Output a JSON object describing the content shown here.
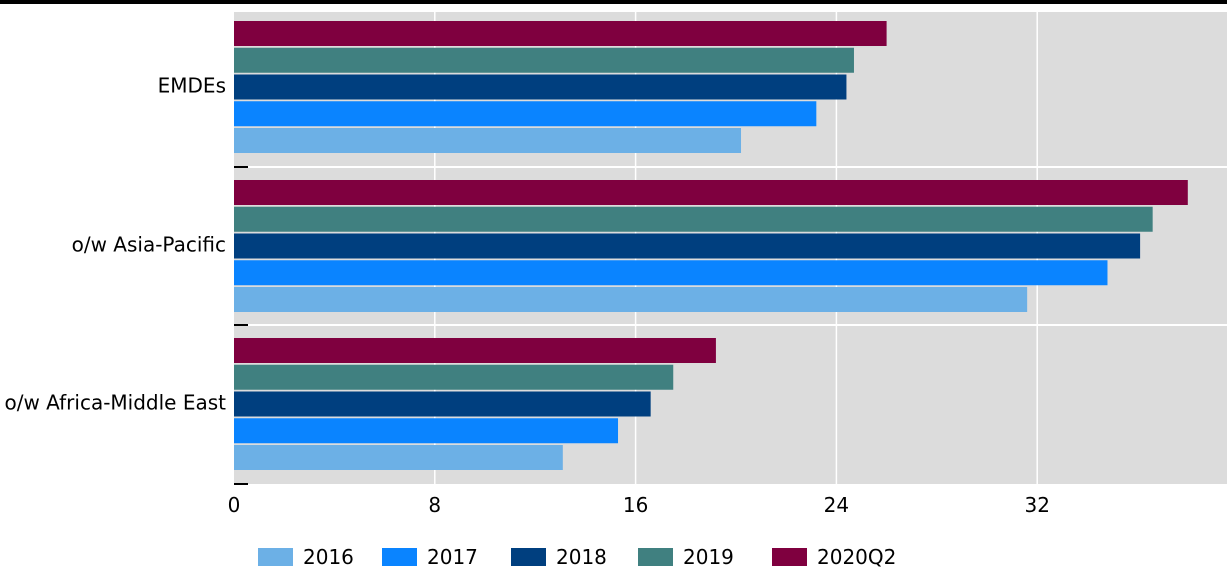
{
  "chart_data": {
    "type": "bar",
    "orientation": "horizontal",
    "title": "",
    "xlabel": "",
    "ylabel": "",
    "categories": [
      "EMDEs",
      "o/w Asia-Pacific",
      "o/w Africa-Middle East"
    ],
    "series": [
      {
        "name": "2016",
        "color": "#6CB0E6",
        "values": [
          20.2,
          31.6,
          13.1
        ]
      },
      {
        "name": "2017",
        "color": "#0A84FF",
        "values": [
          23.2,
          34.8,
          15.3
        ]
      },
      {
        "name": "2018",
        "color": "#003F7F",
        "values": [
          24.4,
          36.1,
          16.6
        ]
      },
      {
        "name": "2019",
        "color": "#408080",
        "values": [
          24.7,
          36.6,
          17.5
        ]
      },
      {
        "name": "2020Q2",
        "color": "#7F003F",
        "values": [
          26.0,
          38.0,
          19.2
        ]
      }
    ],
    "xlim": [
      0,
      39.7
    ],
    "xticks": [
      0,
      8,
      16,
      24,
      32
    ],
    "xtick_labels": [
      "0",
      "8",
      "16",
      "24",
      "32"
    ],
    "grid": true,
    "plot_background": "#DCDCDC",
    "gridline_color": "#FFFFFF",
    "legend_position": "bottom"
  }
}
